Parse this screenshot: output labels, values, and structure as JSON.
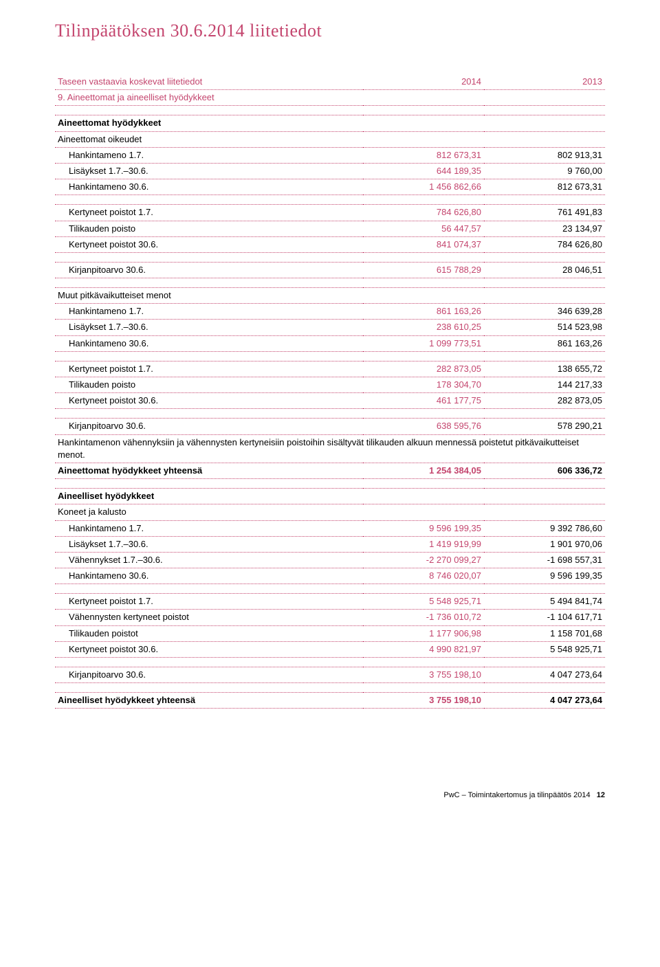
{
  "page_title": "Tilinpäätöksen 30.6.2014 liitetiedot",
  "col_headers": {
    "y2014": "2014",
    "y2013": "2013"
  },
  "section_header": {
    "label": "Taseen vastaavia koskevat liitetiedot",
    "sub": "9. Aineettomat ja aineelliset hyödykkeet"
  },
  "blocks": [
    {
      "type": "spacer"
    },
    {
      "type": "header",
      "label": "Aineettomat hyödykkeet"
    },
    {
      "type": "row",
      "label": "Aineettomat oikeudet",
      "v2014": "",
      "v2013": ""
    },
    {
      "type": "rowi",
      "label": "Hankintameno 1.7.",
      "v2014": "812 673,31",
      "v2013": "802 913,31"
    },
    {
      "type": "rowi",
      "label": "Lisäykset 1.7.–30.6.",
      "v2014": "644 189,35",
      "v2013": "9 760,00"
    },
    {
      "type": "rowi",
      "label": "Hankintameno 30.6.",
      "v2014": "1 456 862,66",
      "v2013": "812 673,31"
    },
    {
      "type": "spacer"
    },
    {
      "type": "rowi",
      "label": "Kertyneet poistot 1.7.",
      "v2014": "784 626,80",
      "v2013": "761 491,83"
    },
    {
      "type": "rowi",
      "label": "Tilikauden poisto",
      "v2014": "56 447,57",
      "v2013": "23 134,97"
    },
    {
      "type": "rowi",
      "label": "Kertyneet poistot 30.6.",
      "v2014": "841 074,37",
      "v2013": "784 626,80"
    },
    {
      "type": "spacer"
    },
    {
      "type": "rowi",
      "label": "Kirjanpitoarvo 30.6.",
      "v2014": "615 788,29",
      "v2013": "28 046,51"
    },
    {
      "type": "spacer"
    },
    {
      "type": "row",
      "label": "Muut pitkävaikutteiset menot",
      "v2014": "",
      "v2013": ""
    },
    {
      "type": "rowi",
      "label": "Hankintameno 1.7.",
      "v2014": "861 163,26",
      "v2013": "346 639,28"
    },
    {
      "type": "rowi",
      "label": "Lisäykset 1.7.–30.6.",
      "v2014": "238 610,25",
      "v2013": "514 523,98"
    },
    {
      "type": "rowi",
      "label": "Hankintameno 30.6.",
      "v2014": "1 099 773,51",
      "v2013": "861 163,26"
    },
    {
      "type": "spacer"
    },
    {
      "type": "rowi",
      "label": "Kertyneet poistot 1.7.",
      "v2014": "282 873,05",
      "v2013": "138 655,72"
    },
    {
      "type": "rowi",
      "label": "Tilikauden poisto",
      "v2014": "178 304,70",
      "v2013": "144 217,33"
    },
    {
      "type": "rowi",
      "label": "Kertyneet poistot 30.6.",
      "v2014": "461 177,75",
      "v2013": "282 873,05"
    },
    {
      "type": "spacer"
    },
    {
      "type": "rowi",
      "label": "Kirjanpitoarvo 30.6.",
      "v2014": "638 595,76",
      "v2013": "578 290,21"
    },
    {
      "type": "note",
      "text": "Hankintamenon vähennyksiin ja vähennysten kertyneisiin poistoihin sisältyvät tilikauden alkuun mennessä poistetut pitkävaikutteiset menot."
    },
    {
      "type": "rowb",
      "label": "Aineettomat hyödykkeet yhteensä",
      "v2014": "1 254 384,05",
      "v2013": "606 336,72"
    },
    {
      "type": "spacer"
    },
    {
      "type": "header",
      "label": "Aineelliset hyödykkeet"
    },
    {
      "type": "row",
      "label": "Koneet ja kalusto",
      "v2014": "",
      "v2013": ""
    },
    {
      "type": "rowi",
      "label": "Hankintameno 1.7.",
      "v2014": "9 596 199,35",
      "v2013": "9 392 786,60"
    },
    {
      "type": "rowi",
      "label": "Lisäykset 1.7.–30.6.",
      "v2014": "1 419 919,99",
      "v2013": "1 901 970,06"
    },
    {
      "type": "rowi",
      "label": "Vähennykset 1.7.–30.6.",
      "v2014": "-2 270 099,27",
      "v2013": "-1 698 557,31"
    },
    {
      "type": "rowi",
      "label": "Hankintameno 30.6.",
      "v2014": "8 746 020,07",
      "v2013": "9 596 199,35"
    },
    {
      "type": "spacer"
    },
    {
      "type": "rowi",
      "label": "Kertyneet poistot 1.7.",
      "v2014": "5 548 925,71",
      "v2013": "5 494 841,74"
    },
    {
      "type": "rowi",
      "label": "Vähennysten kertyneet poistot",
      "v2014": "-1 736 010,72",
      "v2013": "-1 104 617,71"
    },
    {
      "type": "rowi",
      "label": "Tilikauden poistot",
      "v2014": "1 177 906,98",
      "v2013": "1 158 701,68"
    },
    {
      "type": "rowi",
      "label": "Kertyneet poistot 30.6.",
      "v2014": "4 990 821,97",
      "v2013": "5 548 925,71"
    },
    {
      "type": "spacer"
    },
    {
      "type": "rowi",
      "label": "Kirjanpitoarvo 30.6.",
      "v2014": "3 755 198,10",
      "v2013": "4 047 273,64"
    },
    {
      "type": "spacer"
    },
    {
      "type": "rowb",
      "label": "Aineelliset hyödykkeet yhteensä",
      "v2014": "3 755 198,10",
      "v2013": "4 047 273,64"
    }
  ],
  "footer": {
    "text": "PwC – Toimintakertomus ja tilinpäätös 2014",
    "page": "12"
  },
  "colors": {
    "accent": "#c4456e",
    "text": "#000000",
    "background": "#ffffff"
  },
  "fontsizes": {
    "title": 26,
    "body": 13,
    "footer": 11
  }
}
